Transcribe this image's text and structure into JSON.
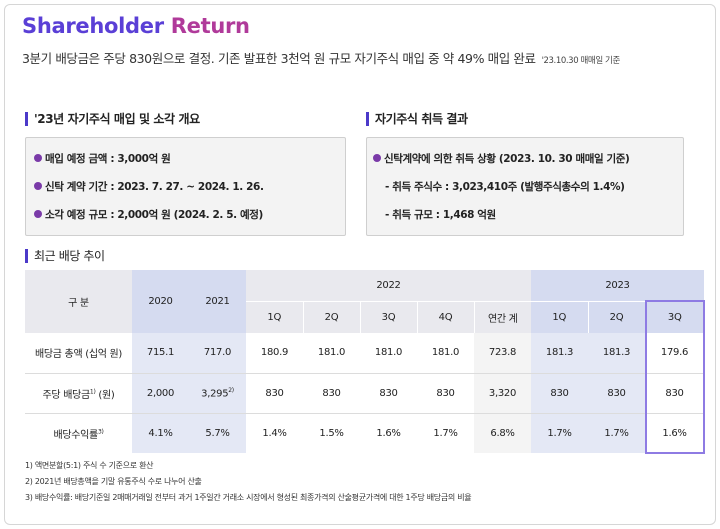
{
  "title": {
    "part1": "Shareholder",
    "part2": "Return"
  },
  "subtitle": {
    "text": "3분기 배당금은 주당 830원으로 결정. 기존 발표한 3천억 원 규모 자기주식 매입 중 약 49% 매입 완료",
    "note": "'23.10.30 매매일 기준"
  },
  "left_section": {
    "heading": "'23년 자기주식 매입 및 소각 개요",
    "items": [
      "매입 예정 금액 : 3,000억 원",
      "신탁 계약 기간 : 2023. 7. 27. ~ 2024. 1. 26.",
      "소각 예정 규모 : 2,000억 원 (2024. 2. 5. 예정)"
    ]
  },
  "right_section": {
    "heading": "자기주식 취득 결과",
    "item": "신탁계약에 의한 취득 상황 (2023. 10. 30 매매일 기준)",
    "subitems": [
      "- 취득 주식수 : 3,023,410주 (발행주식총수의 1.4%)",
      "- 취득 규모 : 1,468 억원"
    ]
  },
  "dividend_section": {
    "heading": "최근 배당 추이"
  },
  "table": {
    "header_label": "구 분",
    "years": {
      "y2020": "2020",
      "y2021": "2021",
      "y2022": "2022",
      "y2023": "2023"
    },
    "quarters_2022": [
      "1Q",
      "2Q",
      "3Q",
      "4Q",
      "연간 계"
    ],
    "quarters_2023": [
      "1Q",
      "2Q",
      "3Q"
    ],
    "rows": [
      {
        "label": "배당금 총액 (십억 원)",
        "sup": "",
        "v2020": "715.1",
        "v2021": "717.0",
        "v2021_sup": "",
        "q2022": [
          "180.9",
          "181.0",
          "181.0",
          "181.0",
          "723.8"
        ],
        "q2023": [
          "181.3",
          "181.3",
          "179.6"
        ]
      },
      {
        "label": "주당 배당금",
        "sup": "1)",
        "label_suffix": " (원)",
        "v2020": "2,000",
        "v2021": "3,295",
        "v2021_sup": "2)",
        "q2022": [
          "830",
          "830",
          "830",
          "830",
          "3,320"
        ],
        "q2023": [
          "830",
          "830",
          "830"
        ]
      },
      {
        "label": "배당수익률",
        "sup": "3)",
        "label_suffix": "",
        "v2020": "4.1%",
        "v2021": "5.7%",
        "v2021_sup": "",
        "q2022": [
          "1.4%",
          "1.5%",
          "1.6%",
          "1.7%",
          "6.8%"
        ],
        "q2023": [
          "1.7%",
          "1.7%",
          "1.6%"
        ]
      }
    ]
  },
  "footnotes": [
    "1) 액면분할(5:1) 주식 수 기준으로 환산",
    "2) 2021년 배당총액을 기말 유통주식 수로 나누어 산출",
    "3) 배당수익률: 배당기준일 2매매거래일 전부터 과거 1주일간 거래소 시장에서 형성된 최종가격의 산술평균가격에 대한 1주당 배당금의 비율"
  ]
}
